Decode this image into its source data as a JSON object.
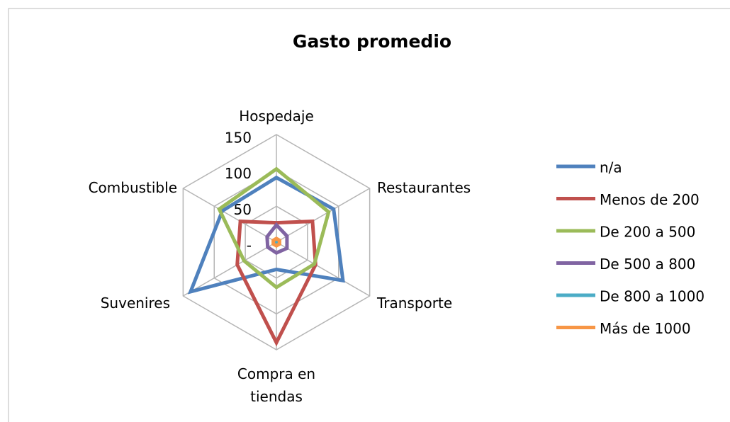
{
  "chart_data": {
    "type": "radar",
    "title": "Gasto promedio",
    "categories": [
      "Hospedaje",
      "Restaurantes",
      "Transporte",
      "Compra en tiendas",
      "Suvenires",
      "Combustible"
    ],
    "series": [
      {
        "name": "n/a",
        "color": "#4f81bd",
        "values": [
          90,
          92,
          107,
          38,
          138,
          87
        ]
      },
      {
        "name": "Menos de 200",
        "color": "#c0504d",
        "values": [
          27,
          58,
          63,
          140,
          63,
          58
        ]
      },
      {
        "name": "De 200 a 500",
        "color": "#9bbb59",
        "values": [
          102,
          84,
          61,
          63,
          52,
          92
        ]
      },
      {
        "name": "De 500 a 800",
        "color": "#8064a2",
        "values": [
          24,
          17,
          17,
          15,
          14,
          15
        ]
      },
      {
        "name": "De 800 a 1000",
        "color": "#4bacc6",
        "values": [
          3,
          3,
          3,
          3,
          3,
          3
        ]
      },
      {
        "name": "Más de 1000",
        "color": "#f79646",
        "values": [
          5,
          5,
          5,
          5,
          5,
          5
        ]
      }
    ],
    "ylim": [
      0,
      150
    ],
    "yticks": [
      {
        "value": 0,
        "label": "-"
      },
      50,
      100,
      150
    ],
    "grid": true,
    "legend": "right"
  }
}
